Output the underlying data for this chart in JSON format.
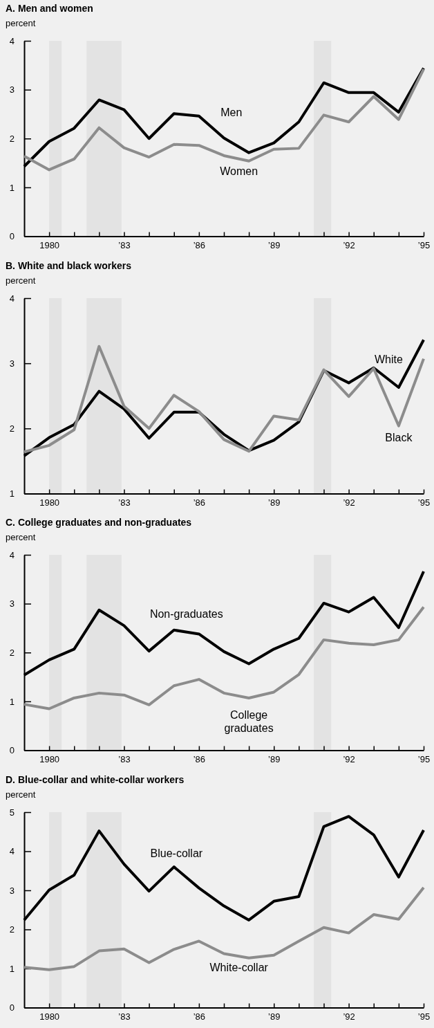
{
  "chart_data": [
    {
      "type": "line",
      "title": "A. Men and women",
      "ylabel": "percent",
      "x": [
        1979,
        1980,
        1981,
        1982,
        1983,
        1984,
        1985,
        1986,
        1987,
        1988,
        1989,
        1990,
        1991,
        1992,
        1993,
        1994,
        1995
      ],
      "series": [
        {
          "name": "Men",
          "color": "#000000",
          "values": [
            1.43,
            1.94,
            2.21,
            2.79,
            2.59,
            2.0,
            2.51,
            2.46,
            2.01,
            1.71,
            1.91,
            2.34,
            3.14,
            2.94,
            2.94,
            2.54,
            3.44
          ]
        },
        {
          "name": "Women",
          "color": "#8c8c8c",
          "values": [
            1.64,
            1.36,
            1.58,
            2.22,
            1.81,
            1.62,
            1.88,
            1.86,
            1.65,
            1.54,
            1.78,
            1.8,
            2.48,
            2.34,
            2.86,
            2.39,
            3.42
          ]
        }
      ],
      "xlim": [
        1979,
        1995
      ],
      "ylim": [
        0,
        4
      ],
      "yticks": [
        0,
        1,
        2,
        3,
        4
      ],
      "xticks": [
        {
          "value": 1980,
          "label": "1980"
        },
        {
          "value": 1981,
          "label": null
        },
        {
          "value": 1982,
          "label": null
        },
        {
          "value": 1983,
          "label": "’83"
        },
        {
          "value": 1984,
          "label": null
        },
        {
          "value": 1985,
          "label": null
        },
        {
          "value": 1986,
          "label": "’86"
        },
        {
          "value": 1987,
          "label": null
        },
        {
          "value": 1988,
          "label": null
        },
        {
          "value": 1989,
          "label": "’89"
        },
        {
          "value": 1990,
          "label": null
        },
        {
          "value": 1991,
          "label": null
        },
        {
          "value": 1992,
          "label": "’92"
        },
        {
          "value": 1993,
          "label": null
        },
        {
          "value": 1994,
          "label": null
        },
        {
          "value": 1995,
          "label": "’95"
        }
      ],
      "bands": [
        {
          "axis": "x",
          "from": 1980,
          "to": 1980.5,
          "color": "#e3e3e3"
        },
        {
          "axis": "x",
          "from": 1981.5,
          "to": 1982.9,
          "color": "#e3e3e3"
        },
        {
          "axis": "x",
          "from": 1990.6,
          "to": 1991.3,
          "color": "#e3e3e3"
        }
      ],
      "grid": false,
      "legend": false,
      "line_style": "solid",
      "marker": "none"
    },
    {
      "type": "line",
      "title": "B. White and black workers",
      "ylabel": "percent",
      "x": [
        1979,
        1980,
        1981,
        1982,
        1983,
        1984,
        1985,
        1986,
        1987,
        1988,
        1989,
        1990,
        1991,
        1992,
        1993,
        1994,
        1995
      ],
      "series": [
        {
          "name": "White",
          "color": "#000000",
          "values": [
            1.58,
            1.86,
            2.06,
            2.57,
            2.3,
            1.85,
            2.25,
            2.25,
            1.91,
            1.66,
            1.82,
            2.1,
            2.89,
            2.7,
            2.93,
            2.63,
            3.36
          ]
        },
        {
          "name": "Black",
          "color": "#8c8c8c",
          "values": [
            1.64,
            1.74,
            1.98,
            3.26,
            2.34,
            2.0,
            2.51,
            2.26,
            1.83,
            1.65,
            2.19,
            2.13,
            2.9,
            2.49,
            2.92,
            2.04,
            3.07
          ]
        }
      ],
      "xlim": [
        1979,
        1995
      ],
      "ylim": [
        1,
        4
      ],
      "yticks": [
        1,
        2,
        3,
        4
      ],
      "xticks": [
        {
          "value": 1980,
          "label": "1980"
        },
        {
          "value": 1981,
          "label": null
        },
        {
          "value": 1982,
          "label": null
        },
        {
          "value": 1983,
          "label": "’83"
        },
        {
          "value": 1984,
          "label": null
        },
        {
          "value": 1985,
          "label": null
        },
        {
          "value": 1986,
          "label": "’86"
        },
        {
          "value": 1987,
          "label": null
        },
        {
          "value": 1988,
          "label": null
        },
        {
          "value": 1989,
          "label": "’89"
        },
        {
          "value": 1990,
          "label": null
        },
        {
          "value": 1991,
          "label": null
        },
        {
          "value": 1992,
          "label": "’92"
        },
        {
          "value": 1993,
          "label": null
        },
        {
          "value": 1994,
          "label": null
        },
        {
          "value": 1995,
          "label": "’95"
        }
      ],
      "bands": [
        {
          "axis": "x",
          "from": 1980,
          "to": 1980.5,
          "color": "#e3e3e3"
        },
        {
          "axis": "x",
          "from": 1981.5,
          "to": 1982.9,
          "color": "#e3e3e3"
        },
        {
          "axis": "x",
          "from": 1990.6,
          "to": 1991.3,
          "color": "#e3e3e3"
        }
      ],
      "grid": false,
      "legend": false,
      "line_style": "solid",
      "marker": "none"
    },
    {
      "type": "line",
      "title": "C. College graduates and non-graduates",
      "ylabel": "percent",
      "x": [
        1979,
        1980,
        1981,
        1982,
        1983,
        1984,
        1985,
        1986,
        1987,
        1988,
        1989,
        1990,
        1991,
        1992,
        1993,
        1994,
        1995
      ],
      "series": [
        {
          "name": "Non-graduates",
          "color": "#000000",
          "values": [
            1.54,
            1.85,
            2.07,
            2.87,
            2.55,
            2.03,
            2.46,
            2.38,
            2.02,
            1.77,
            2.07,
            2.29,
            3.01,
            2.83,
            3.13,
            2.51,
            3.66
          ]
        },
        {
          "name": "College graduates",
          "color": "#8c8c8c",
          "values": [
            0.94,
            0.85,
            1.07,
            1.17,
            1.13,
            0.93,
            1.32,
            1.45,
            1.17,
            1.07,
            1.19,
            1.55,
            2.26,
            2.19,
            2.16,
            2.26,
            2.93
          ]
        }
      ],
      "xlim": [
        1979,
        1995
      ],
      "ylim": [
        0,
        4
      ],
      "yticks": [
        0,
        1,
        2,
        3,
        4
      ],
      "xticks": [
        {
          "value": 1980,
          "label": "1980"
        },
        {
          "value": 1981,
          "label": null
        },
        {
          "value": 1982,
          "label": null
        },
        {
          "value": 1983,
          "label": "’83"
        },
        {
          "value": 1984,
          "label": null
        },
        {
          "value": 1985,
          "label": null
        },
        {
          "value": 1986,
          "label": "’86"
        },
        {
          "value": 1987,
          "label": null
        },
        {
          "value": 1988,
          "label": null
        },
        {
          "value": 1989,
          "label": "’89"
        },
        {
          "value": 1990,
          "label": null
        },
        {
          "value": 1991,
          "label": null
        },
        {
          "value": 1992,
          "label": "’92"
        },
        {
          "value": 1993,
          "label": null
        },
        {
          "value": 1994,
          "label": null
        },
        {
          "value": 1995,
          "label": "’95"
        }
      ],
      "bands": [
        {
          "axis": "x",
          "from": 1980,
          "to": 1980.5,
          "color": "#e3e3e3"
        },
        {
          "axis": "x",
          "from": 1981.5,
          "to": 1982.9,
          "color": "#e3e3e3"
        },
        {
          "axis": "x",
          "from": 1990.6,
          "to": 1991.3,
          "color": "#e3e3e3"
        }
      ],
      "grid": false,
      "legend": false,
      "line_style": "solid",
      "marker": "none"
    },
    {
      "type": "line",
      "title": "D. Blue-collar and white-collar workers",
      "ylabel": "percent",
      "x": [
        1979,
        1980,
        1981,
        1982,
        1983,
        1984,
        1985,
        1986,
        1987,
        1988,
        1989,
        1990,
        1991,
        1992,
        1993,
        1994,
        1995
      ],
      "series": [
        {
          "name": "Blue-collar",
          "color": "#000000",
          "values": [
            2.24,
            3.01,
            3.39,
            4.52,
            3.67,
            2.98,
            3.6,
            3.06,
            2.6,
            2.24,
            2.72,
            2.84,
            4.63,
            4.89,
            4.42,
            3.34,
            4.54
          ]
        },
        {
          "name": "White-collar",
          "color": "#8c8c8c",
          "values": [
            1.03,
            0.97,
            1.05,
            1.45,
            1.5,
            1.15,
            1.49,
            1.7,
            1.38,
            1.27,
            1.34,
            1.7,
            2.05,
            1.91,
            2.38,
            2.26,
            3.07
          ]
        }
      ],
      "xlim": [
        1979,
        1995
      ],
      "ylim": [
        0,
        5
      ],
      "yticks": [
        0,
        1,
        2,
        3,
        4,
        5
      ],
      "xticks": [
        {
          "value": 1980,
          "label": "1980"
        },
        {
          "value": 1981,
          "label": null
        },
        {
          "value": 1982,
          "label": null
        },
        {
          "value": 1983,
          "label": "’83"
        },
        {
          "value": 1984,
          "label": null
        },
        {
          "value": 1985,
          "label": null
        },
        {
          "value": 1986,
          "label": "’86"
        },
        {
          "value": 1987,
          "label": null
        },
        {
          "value": 1988,
          "label": null
        },
        {
          "value": 1989,
          "label": "’89"
        },
        {
          "value": 1990,
          "label": null
        },
        {
          "value": 1991,
          "label": null
        },
        {
          "value": 1992,
          "label": "’92"
        },
        {
          "value": 1993,
          "label": null
        },
        {
          "value": 1994,
          "label": null
        },
        {
          "value": 1995,
          "label": "’95"
        }
      ],
      "bands": [
        {
          "axis": "x",
          "from": 1980,
          "to": 1980.5,
          "color": "#e3e3e3"
        },
        {
          "axis": "x",
          "from": 1981.5,
          "to": 1982.9,
          "color": "#e3e3e3"
        },
        {
          "axis": "x",
          "from": 1990.6,
          "to": 1991.3,
          "color": "#e3e3e3"
        }
      ],
      "grid": false,
      "legend": false,
      "line_style": "solid",
      "marker": "none"
    }
  ]
}
